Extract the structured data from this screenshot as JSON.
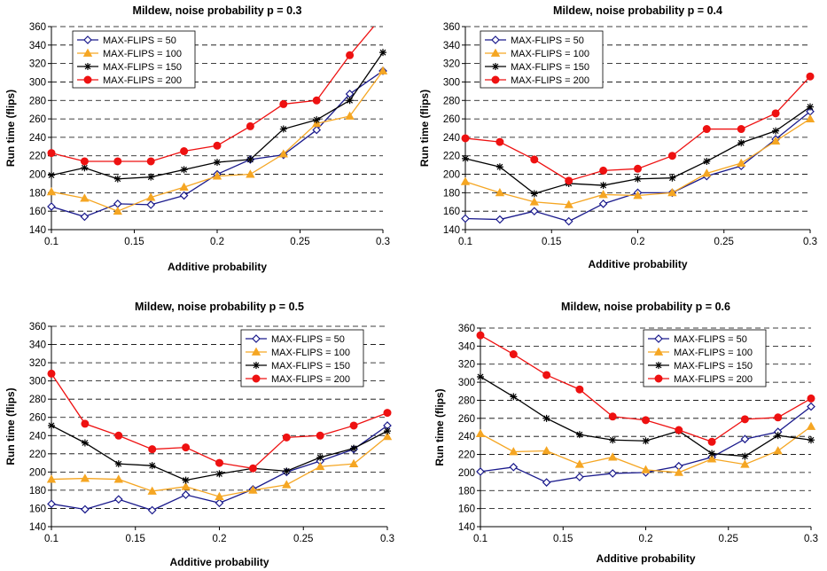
{
  "chart_data": [
    {
      "type": "line",
      "title": "Mildew, noise probability p = 0.3",
      "xlabel": "Additive probability",
      "ylabel": "Run time (flips)",
      "xlim": [
        0.1,
        0.3
      ],
      "ylim": [
        140,
        360
      ],
      "xticks": [
        "0.1",
        "0.15",
        "0.2",
        "0.25",
        "0.3"
      ],
      "yticks": [
        "140",
        "160",
        "180",
        "200",
        "220",
        "240",
        "260",
        "280",
        "300",
        "320",
        "340",
        "360"
      ],
      "grid": "horizontal dashed",
      "legend_position": "top-left",
      "x": [
        0.1,
        0.12,
        0.14,
        0.16,
        0.18,
        0.2,
        0.22,
        0.24,
        0.26,
        0.28,
        0.3
      ],
      "series": [
        {
          "name": "MAX-FLIPS = 50",
          "values": [
            165,
            154,
            168,
            167,
            177,
            200,
            216,
            221,
            248,
            287,
            312
          ]
        },
        {
          "name": "MAX-FLIPS = 100",
          "values": [
            181,
            174,
            160,
            175,
            186,
            198,
            200,
            222,
            255,
            263,
            312
          ]
        },
        {
          "name": "MAX-FLIPS = 150",
          "values": [
            199,
            207,
            195,
            197,
            205,
            213,
            216,
            249,
            259,
            280,
            332
          ]
        },
        {
          "name": "MAX-FLIPS = 200",
          "values": [
            223,
            214,
            214,
            214,
            225,
            231,
            252,
            276,
            280,
            329,
            372
          ]
        }
      ]
    },
    {
      "type": "line",
      "title": "Mildew, noise probability p = 0.4",
      "xlabel": "Additive probability",
      "ylabel": "Run time (flips)",
      "xlim": [
        0.1,
        0.3
      ],
      "ylim": [
        140,
        360
      ],
      "xticks": [
        "0.1",
        "0.15",
        "0.2",
        "0.25",
        "0.3"
      ],
      "yticks": [
        "140",
        "160",
        "180",
        "200",
        "220",
        "240",
        "260",
        "280",
        "300",
        "320",
        "340",
        "360"
      ],
      "grid": "horizontal dashed",
      "legend_position": "top-left",
      "x": [
        0.1,
        0.12,
        0.14,
        0.16,
        0.18,
        0.2,
        0.22,
        0.24,
        0.26,
        0.28,
        0.3
      ],
      "series": [
        {
          "name": "MAX-FLIPS = 50",
          "values": [
            152,
            151,
            160,
            149,
            168,
            180,
            180,
            198,
            209,
            238,
            268
          ]
        },
        {
          "name": "MAX-FLIPS = 100",
          "values": [
            192,
            180,
            170,
            167,
            178,
            177,
            180,
            201,
            212,
            236,
            260
          ]
        },
        {
          "name": "MAX-FLIPS = 150",
          "values": [
            217,
            208,
            179,
            190,
            188,
            195,
            196,
            214,
            234,
            247,
            273
          ]
        },
        {
          "name": "MAX-FLIPS = 200",
          "values": [
            239,
            235,
            216,
            193,
            204,
            206,
            220,
            249,
            249,
            266,
            306
          ]
        }
      ]
    },
    {
      "type": "line",
      "title": "Mildew, noise probability p = 0.5",
      "xlabel": "Additive probability",
      "ylabel": "Run time (flips)",
      "xlim": [
        0.1,
        0.3
      ],
      "ylim": [
        140,
        360
      ],
      "xticks": [
        "0.1",
        "0.15",
        "0.2",
        "0.25",
        "0.3"
      ],
      "yticks": [
        "140",
        "160",
        "180",
        "200",
        "220",
        "240",
        "260",
        "280",
        "300",
        "320",
        "340",
        "360"
      ],
      "grid": "horizontal dashed",
      "legend_position": "top-right",
      "x": [
        0.1,
        0.12,
        0.14,
        0.16,
        0.18,
        0.2,
        0.22,
        0.24,
        0.26,
        0.28,
        0.3
      ],
      "series": [
        {
          "name": "MAX-FLIPS = 50",
          "values": [
            165,
            159,
            170,
            158,
            175,
            166,
            181,
            200,
            212,
            225,
            251
          ]
        },
        {
          "name": "MAX-FLIPS = 100",
          "values": [
            192,
            193,
            192,
            179,
            184,
            173,
            180,
            186,
            206,
            209,
            239
          ]
        },
        {
          "name": "MAX-FLIPS = 150",
          "values": [
            251,
            232,
            209,
            207,
            191,
            198,
            204,
            201,
            216,
            226,
            245
          ]
        },
        {
          "name": "MAX-FLIPS = 200",
          "values": [
            308,
            253,
            240,
            225,
            227,
            210,
            204,
            238,
            240,
            251,
            265
          ]
        }
      ]
    },
    {
      "type": "line",
      "title": "Mildew, noise probability p = 0.6",
      "xlabel": "Additive probability",
      "ylabel": "Run time (flips)",
      "xlim": [
        0.1,
        0.3
      ],
      "ylim": [
        140,
        360
      ],
      "xticks": [
        "0.1",
        "0.15",
        "0.2",
        "0.25",
        "0.3"
      ],
      "yticks": [
        "140",
        "160",
        "180",
        "200",
        "220",
        "240",
        "260",
        "280",
        "300",
        "320",
        "340",
        "360"
      ],
      "grid": "horizontal dashed",
      "legend_position": "top-right",
      "x": [
        0.1,
        0.12,
        0.14,
        0.16,
        0.18,
        0.2,
        0.22,
        0.24,
        0.26,
        0.28,
        0.3
      ],
      "series": [
        {
          "name": "MAX-FLIPS = 50",
          "values": [
            201,
            206,
            189,
            195,
            199,
            200,
            207,
            217,
            237,
            245,
            273
          ]
        },
        {
          "name": "MAX-FLIPS = 100",
          "values": [
            243,
            223,
            224,
            209,
            217,
            203,
            200,
            215,
            209,
            224,
            251
          ]
        },
        {
          "name": "MAX-FLIPS = 150",
          "values": [
            306,
            284,
            260,
            242,
            236,
            235,
            246,
            221,
            218,
            241,
            236
          ]
        },
        {
          "name": "MAX-FLIPS = 200",
          "values": [
            352,
            331,
            308,
            292,
            262,
            258,
            247,
            234,
            259,
            261,
            282
          ]
        }
      ]
    }
  ],
  "series_style": [
    {
      "color": "#1a1a8c",
      "marker": "diamond-open"
    },
    {
      "color": "#f5a623",
      "marker": "triangle-filled"
    },
    {
      "color": "#000000",
      "marker": "asterisk"
    },
    {
      "color": "#ee1111",
      "marker": "circle-filled"
    }
  ]
}
